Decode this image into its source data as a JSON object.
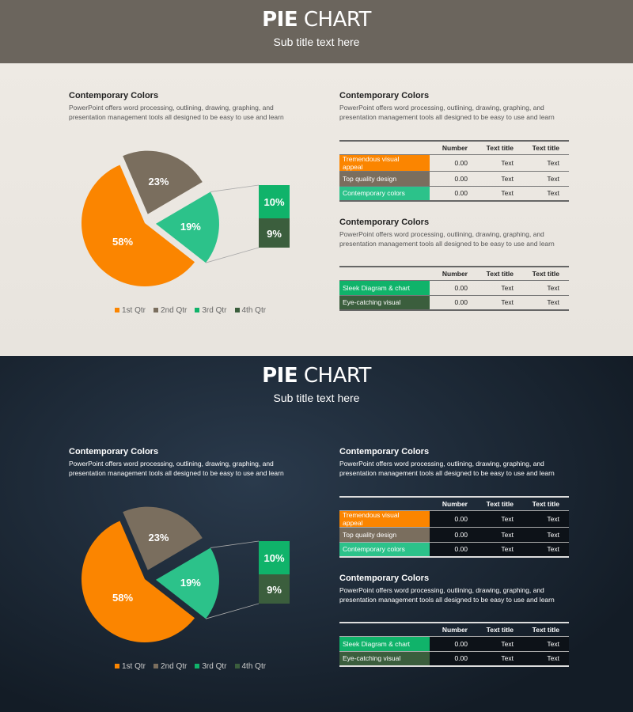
{
  "slides": [
    {
      "theme": "light",
      "title_bold": "PIE",
      "title_rest": " CHART",
      "subtitle": "Sub title text here",
      "left": {
        "heading": "Contemporary Colors",
        "text": "PowerPoint offers word processing, outlining, drawing, graphing, and presentation management tools all designed to be easy to use and learn"
      },
      "right1": {
        "heading": "Contemporary Colors",
        "text": "PowerPoint offers word processing, outlining, drawing, graphing, and presentation management tools all designed to be easy to use and learn"
      },
      "right2": {
        "heading": "Contemporary Colors",
        "text": "PowerPoint offers word processing, outlining, drawing, graphing, and presentation management tools all designed to be easy to use and learn"
      },
      "table1": {
        "headers": [
          "",
          "Number",
          "Text title",
          "Text title"
        ],
        "rows": [
          {
            "label": "Tremendous visual appeal",
            "color": "#fb8500",
            "cells": [
              "0.00",
              "Text",
              "Text"
            ]
          },
          {
            "label": "Top quality design",
            "color": "#7a6e5e",
            "cells": [
              "0.00",
              "Text",
              "Text"
            ]
          },
          {
            "label": "Contemporary colors",
            "color": "#2cc28a",
            "cells": [
              "0.00",
              "Text",
              "Text"
            ]
          }
        ]
      },
      "table2": {
        "headers": [
          "",
          "Number",
          "Text title",
          "Text title"
        ],
        "rows": [
          {
            "label": "Sleek Diagram & chart",
            "color": "#10b36a",
            "cells": [
              "0.00",
              "Text",
              "Text"
            ]
          },
          {
            "label": "Eye-catching visual",
            "color": "#3b5e3d",
            "cells": [
              "0.00",
              "Text",
              "Text"
            ]
          }
        ]
      }
    },
    {
      "theme": "dark",
      "title_bold": "PIE",
      "title_rest": " CHART",
      "subtitle": "Sub title text here",
      "left": {
        "heading": "Contemporary Colors",
        "text": "PowerPoint offers word processing, outlining, drawing, graphing, and presentation management tools all designed to be easy to use and learn"
      },
      "right1": {
        "heading": "Contemporary Colors",
        "text": "PowerPoint offers word processing, outlining, drawing, graphing, and presentation management tools all designed to be easy to use and learn"
      },
      "right2": {
        "heading": "Contemporary Colors",
        "text": "PowerPoint offers word processing, outlining, drawing, graphing, and presentation management tools all designed to be easy to use and learn"
      },
      "table1": {
        "headers": [
          "",
          "Number",
          "Text title",
          "Text title"
        ],
        "rows": [
          {
            "label": "Tremendous visual appeal",
            "color": "#fb8500",
            "cells": [
              "0.00",
              "Text",
              "Text"
            ]
          },
          {
            "label": "Top quality design",
            "color": "#7a6e5e",
            "cells": [
              "0.00",
              "Text",
              "Text"
            ]
          },
          {
            "label": "Contemporary colors",
            "color": "#2cc28a",
            "cells": [
              "0.00",
              "Text",
              "Text"
            ]
          }
        ]
      },
      "table2": {
        "headers": [
          "",
          "Number",
          "Text title",
          "Text title"
        ],
        "rows": [
          {
            "label": "Sleek Diagram & chart",
            "color": "#10b36a",
            "cells": [
              "0.00",
              "Text",
              "Text"
            ]
          },
          {
            "label": "Eye-catching visual",
            "color": "#3b5e3d",
            "cells": [
              "0.00",
              "Text",
              "Text"
            ]
          }
        ]
      }
    }
  ],
  "chart_data": {
    "type": "pie",
    "categories": [
      "1st Qtr",
      "2nd Qtr",
      "3rd Qtr",
      "4th Qtr"
    ],
    "values": [
      58,
      23,
      10,
      9
    ],
    "labels": [
      "58%",
      "23%",
      "19%",
      "10%",
      "9%"
    ],
    "pie_of_pie": {
      "main": [
        58,
        23,
        19
      ],
      "secondary": [
        10,
        9
      ]
    },
    "colors": [
      "#fb8500",
      "#7a6e5e",
      "#2cc28a",
      "#10b36a",
      "#3b5e3d"
    ],
    "legend": "bottom"
  }
}
